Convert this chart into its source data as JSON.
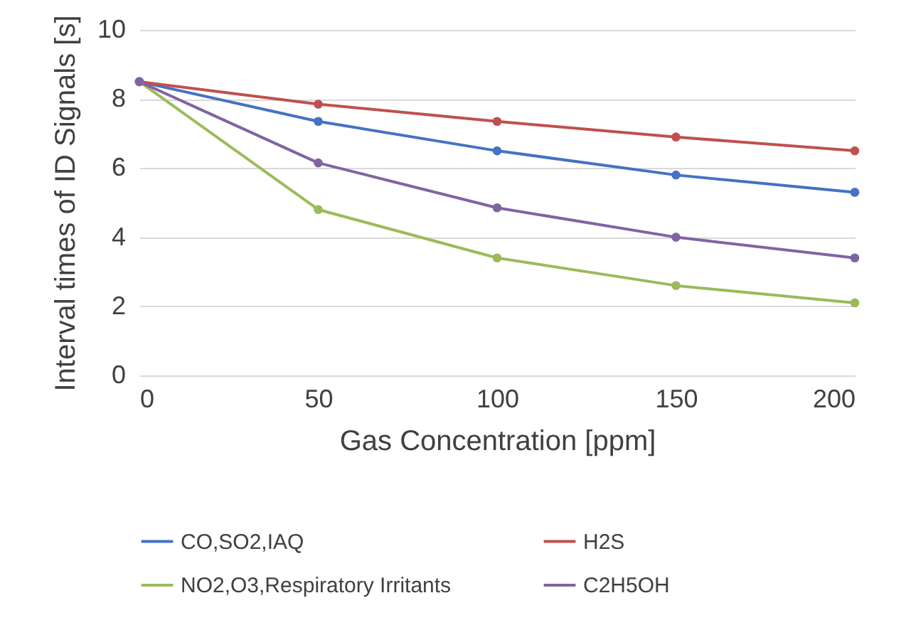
{
  "chart_data": {
    "type": "line",
    "xlabel": "Gas Concentration [ppm]",
    "ylabel": "Interval times of ID Signals [s]",
    "x": [
      0,
      50,
      100,
      150,
      200
    ],
    "series": [
      {
        "name": "CO,SO2,IAQ",
        "color": "#4472c4",
        "values": [
          8.5,
          7.35,
          6.5,
          5.8,
          5.3
        ]
      },
      {
        "name": "H2S",
        "color": "#c0504d",
        "values": [
          8.5,
          7.85,
          7.35,
          6.9,
          6.5
        ]
      },
      {
        "name": "NO2,O3,Respiratory Irritants",
        "color": "#9bbb59",
        "values": [
          8.5,
          4.8,
          3.4,
          2.6,
          2.1
        ]
      },
      {
        "name": "C2H5OH",
        "color": "#8064a2",
        "values": [
          8.5,
          6.15,
          4.85,
          4.0,
          3.4
        ]
      }
    ],
    "xlim": [
      0,
      200
    ],
    "xticks": [
      0,
      50,
      100,
      150,
      200
    ],
    "ylim": [
      0,
      10
    ],
    "yticks": [
      0,
      2,
      4,
      6,
      8,
      10
    ],
    "grid": "y",
    "legend": "bottom",
    "marker": "circle",
    "line_style": "solid"
  }
}
